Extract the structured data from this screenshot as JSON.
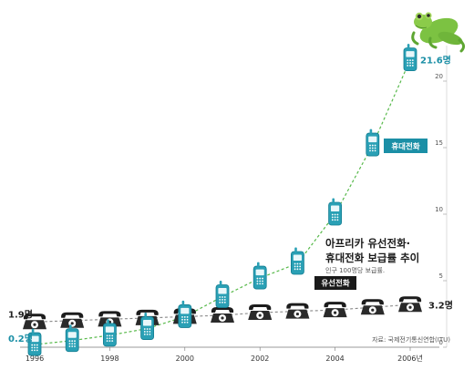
{
  "chart_data": {
    "type": "line",
    "title_lines": [
      "아프리카 유선전화·",
      "휴대전화 보급률 추이"
    ],
    "subtitle": "인구 100명당 보급률.",
    "source": "자료: 국제전기통신연합(ITU)",
    "x": [
      1996,
      1997,
      1998,
      1999,
      2000,
      2001,
      2002,
      2003,
      2004,
      2005,
      2006
    ],
    "x_tick_labels": [
      "1996",
      "1998",
      "2000",
      "2002",
      "2004",
      "2006년"
    ],
    "x_tick_values": [
      1996,
      1998,
      2000,
      2002,
      2004,
      2006
    ],
    "y_ticks": [
      0,
      5,
      10,
      15,
      20
    ],
    "ylim": [
      0,
      22
    ],
    "grid": false,
    "series": [
      {
        "name": "휴대전화",
        "color": "#2aa0b5",
        "line_color": "#57b94a",
        "line_style": "dashed",
        "icon": "mobile-phone-icon",
        "values": [
          0.2,
          0.5,
          0.9,
          1.4,
          2.3,
          3.8,
          5.2,
          6.3,
          10.0,
          15.2,
          21.6
        ]
      },
      {
        "name": "유선전화",
        "color": "#222222",
        "line_color": "#888888",
        "line_style": "dashed",
        "icon": "desk-phone-icon",
        "values": [
          1.9,
          2.0,
          2.1,
          2.2,
          2.3,
          2.4,
          2.6,
          2.7,
          2.8,
          3.0,
          3.2
        ]
      }
    ],
    "annotations": [
      {
        "text": "1.9명",
        "series": "유선전화",
        "x": 1996,
        "color": "#222222"
      },
      {
        "text": "0.2명",
        "series": "휴대전화",
        "x": 1996,
        "color": "#1b8fa6"
      },
      {
        "text": "21.6명",
        "series": "휴대전화",
        "x": 2006,
        "color": "#1b8fa6"
      },
      {
        "text": "3.2명",
        "series": "유선전화",
        "x": 2006,
        "color": "#222222"
      }
    ],
    "tags": [
      {
        "text": "휴대전화",
        "series": "휴대전화",
        "background": "#1b8fa6"
      },
      {
        "text": "유선전화",
        "series": "유선전화",
        "background": "#1a1a1a"
      }
    ],
    "decoration": "tree-frog-icon"
  }
}
